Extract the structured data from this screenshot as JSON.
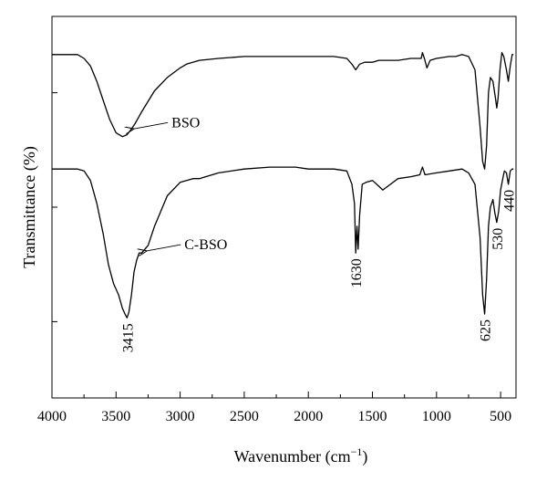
{
  "chart_data": {
    "type": "line",
    "xlabel": "Wavenumber (cm",
    "xlabel_sup": "−1",
    "xlabel_end": ")",
    "ylabel": "Transmittance (%)",
    "xlim": [
      4000,
      380
    ],
    "x_reversed": true,
    "x_ticks": [
      4000,
      3500,
      3000,
      2500,
      2000,
      1500,
      1000,
      500
    ],
    "x_tick_labels": [
      "4000",
      "3500",
      "3000",
      "2500",
      "2000",
      "1500",
      "1000",
      "500"
    ],
    "ylim": [
      0,
      100
    ],
    "y_ticks": [
      20,
      50,
      80
    ],
    "grid": false,
    "series": [
      {
        "name": "BSO",
        "points": [
          [
            4000,
            90
          ],
          [
            3800,
            90
          ],
          [
            3750,
            89
          ],
          [
            3700,
            87
          ],
          [
            3650,
            83
          ],
          [
            3600,
            78
          ],
          [
            3550,
            73
          ],
          [
            3500,
            69.5
          ],
          [
            3450,
            68.5
          ],
          [
            3415,
            69
          ],
          [
            3380,
            70.5
          ],
          [
            3350,
            72
          ],
          [
            3300,
            75
          ],
          [
            3200,
            80.5
          ],
          [
            3100,
            84
          ],
          [
            3000,
            86.5
          ],
          [
            2950,
            87.5
          ],
          [
            2850,
            88.5
          ],
          [
            2700,
            89
          ],
          [
            2500,
            89.5
          ],
          [
            2200,
            89.5
          ],
          [
            2000,
            89.5
          ],
          [
            1800,
            89.5
          ],
          [
            1700,
            89
          ],
          [
            1660,
            87.5
          ],
          [
            1630,
            86
          ],
          [
            1600,
            87.5
          ],
          [
            1560,
            88
          ],
          [
            1500,
            88
          ],
          [
            1450,
            88.5
          ],
          [
            1400,
            88.5
          ],
          [
            1300,
            88.5
          ],
          [
            1200,
            89
          ],
          [
            1120,
            89
          ],
          [
            1110,
            90.5
          ],
          [
            1095,
            89
          ],
          [
            1075,
            86.5
          ],
          [
            1050,
            88.5
          ],
          [
            1000,
            89
          ],
          [
            900,
            89.5
          ],
          [
            850,
            89.5
          ],
          [
            800,
            90
          ],
          [
            750,
            89.5
          ],
          [
            700,
            86
          ],
          [
            660,
            71
          ],
          [
            640,
            62
          ],
          [
            625,
            60
          ],
          [
            610,
            66
          ],
          [
            595,
            80
          ],
          [
            580,
            84
          ],
          [
            560,
            83
          ],
          [
            540,
            78.5
          ],
          [
            530,
            76
          ],
          [
            520,
            78.5
          ],
          [
            505,
            86
          ],
          [
            490,
            90.5
          ],
          [
            475,
            89.5
          ],
          [
            455,
            86
          ],
          [
            440,
            83
          ],
          [
            425,
            87
          ],
          [
            410,
            90
          ],
          [
            400,
            90
          ]
        ]
      },
      {
        "name": "C-BSO",
        "points": [
          [
            4000,
            60
          ],
          [
            3800,
            60
          ],
          [
            3750,
            59.5
          ],
          [
            3700,
            57
          ],
          [
            3650,
            51
          ],
          [
            3600,
            43
          ],
          [
            3560,
            35
          ],
          [
            3520,
            30
          ],
          [
            3480,
            27
          ],
          [
            3450,
            23.5
          ],
          [
            3430,
            22
          ],
          [
            3415,
            21
          ],
          [
            3400,
            22.5
          ],
          [
            3380,
            27
          ],
          [
            3360,
            33
          ],
          [
            3340,
            36
          ],
          [
            3320,
            38
          ],
          [
            3300,
            38
          ],
          [
            3250,
            40
          ],
          [
            3200,
            45
          ],
          [
            3100,
            53
          ],
          [
            3000,
            56.5
          ],
          [
            2900,
            57.5
          ],
          [
            2850,
            57.5
          ],
          [
            2800,
            58
          ],
          [
            2700,
            59
          ],
          [
            2500,
            60
          ],
          [
            2300,
            60.5
          ],
          [
            2100,
            60.5
          ],
          [
            2000,
            60
          ],
          [
            1800,
            60
          ],
          [
            1700,
            59.5
          ],
          [
            1660,
            56
          ],
          [
            1640,
            51
          ],
          [
            1630,
            38
          ],
          [
            1620,
            45
          ],
          [
            1612,
            39
          ],
          [
            1600,
            48
          ],
          [
            1580,
            56
          ],
          [
            1550,
            56.5
          ],
          [
            1500,
            57
          ],
          [
            1450,
            55.5
          ],
          [
            1420,
            54.5
          ],
          [
            1400,
            55
          ],
          [
            1300,
            57.5
          ],
          [
            1200,
            58
          ],
          [
            1130,
            58.5
          ],
          [
            1110,
            60.5
          ],
          [
            1090,
            58.5
          ],
          [
            1000,
            59
          ],
          [
            900,
            59.5
          ],
          [
            800,
            60
          ],
          [
            750,
            59
          ],
          [
            700,
            56
          ],
          [
            660,
            42
          ],
          [
            640,
            27
          ],
          [
            625,
            22
          ],
          [
            610,
            31
          ],
          [
            595,
            45
          ],
          [
            580,
            50
          ],
          [
            560,
            52
          ],
          [
            545,
            48.5
          ],
          [
            530,
            46
          ],
          [
            515,
            49
          ],
          [
            500,
            54.5
          ],
          [
            480,
            58
          ],
          [
            470,
            59.5
          ],
          [
            455,
            59
          ],
          [
            440,
            56
          ],
          [
            425,
            59.5
          ],
          [
            410,
            60
          ],
          [
            400,
            60
          ]
        ]
      }
    ],
    "annotations": [
      {
        "text": "BSO",
        "target": [
          3380,
          70.5
        ],
        "anchor_side": "right"
      },
      {
        "text": "C-BSO",
        "target": [
          3280,
          38.5
        ],
        "anchor_side": "right"
      },
      {
        "text": "3415",
        "x": 3415,
        "y": 21,
        "rotated": true
      },
      {
        "text": "1630",
        "x": 1630,
        "y": 38,
        "rotated": true
      },
      {
        "text": "625",
        "x": 625,
        "y": 22,
        "rotated": true
      },
      {
        "text": "530",
        "x": 530,
        "y": 46,
        "rotated": true
      },
      {
        "text": "440",
        "x": 440,
        "y": 56,
        "rotated": true
      }
    ]
  }
}
